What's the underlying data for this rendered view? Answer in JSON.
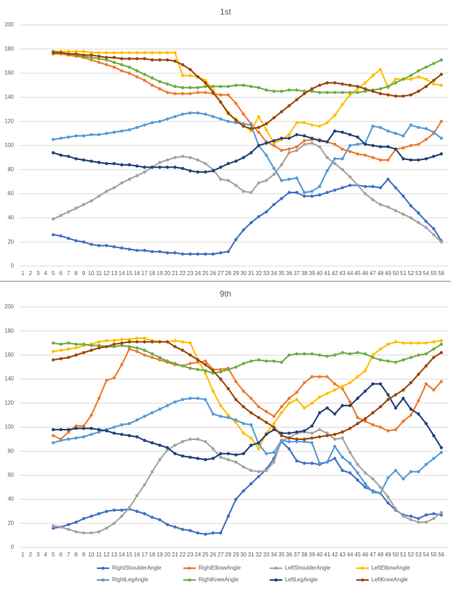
{
  "legend": {
    "series": [
      {
        "name": "RightShoulderAngle",
        "color": "#4472c4"
      },
      {
        "name": "RightElbowAngle",
        "color": "#ed7d31"
      },
      {
        "name": "LeftShoulderAngle",
        "color": "#a5a5a5"
      },
      {
        "name": "LeftElbowAngle",
        "color": "#ffc000"
      },
      {
        "name": "RightLegAngle",
        "color": "#5b9bd5"
      },
      {
        "name": "RightKneeAngle",
        "color": "#70ad47"
      },
      {
        "name": "LeftLegAngle",
        "color": "#264478"
      },
      {
        "name": "LeftKneeAngle",
        "color": "#9e480e"
      }
    ]
  },
  "chart_data": [
    {
      "type": "line",
      "title": "1st",
      "categories": [
        "1",
        "2",
        "3",
        "4",
        "5",
        "6",
        "7",
        "8",
        "9",
        "10",
        "11",
        "12",
        "13",
        "14",
        "15",
        "16",
        "17",
        "18",
        "19",
        "20",
        "21",
        "22",
        "23",
        "24",
        "25",
        "26",
        "27",
        "28",
        "29",
        "30",
        "31",
        "32",
        "33",
        "34",
        "35",
        "36",
        "37",
        "38",
        "39",
        "40",
        "41",
        "42",
        "43",
        "44",
        "45",
        "46",
        "47",
        "48",
        "49",
        "50",
        "51",
        "52",
        "53",
        "54",
        "55",
        "56"
      ],
      "ylim": [
        0,
        200
      ],
      "yticks": [
        0,
        20,
        40,
        60,
        80,
        100,
        120,
        140,
        160,
        180,
        200
      ],
      "grid": true,
      "series": [
        {
          "values": [
            null,
            null,
            null,
            null,
            26,
            25,
            23,
            21,
            20,
            18,
            17,
            17,
            16,
            15,
            14,
            13,
            13,
            12,
            12,
            11,
            11,
            10,
            10,
            10,
            10,
            10,
            11,
            12,
            22,
            30,
            36,
            41,
            45,
            51,
            56,
            61,
            61,
            58,
            58,
            59,
            61,
            63,
            65,
            67,
            67,
            66,
            66,
            65,
            72,
            65,
            58,
            50,
            44,
            37,
            31,
            21
          ]
        },
        {
          "values": [
            null,
            null,
            null,
            null,
            176,
            176,
            175,
            174,
            173,
            171,
            169,
            167,
            165,
            162,
            160,
            157,
            154,
            150,
            147,
            144,
            143,
            143,
            143,
            144,
            144,
            143,
            142,
            142,
            135,
            126,
            118,
            111,
            103,
            100,
            96,
            97,
            99,
            104,
            105,
            105,
            103,
            101,
            97,
            95,
            93,
            92,
            90,
            88,
            88,
            97,
            98,
            100,
            101,
            105,
            110,
            120
          ]
        },
        {
          "values": [
            null,
            null,
            null,
            null,
            39,
            42,
            45,
            48,
            51,
            54,
            58,
            62,
            65,
            69,
            72,
            75,
            78,
            82,
            86,
            88,
            90,
            91,
            90,
            88,
            85,
            80,
            72,
            71,
            67,
            62,
            61,
            69,
            71,
            76,
            84,
            94,
            96,
            101,
            102,
            99,
            90,
            85,
            80,
            74,
            67,
            60,
            55,
            51,
            49,
            46,
            43,
            40,
            36,
            32,
            26,
            20
          ]
        },
        {
          "values": [
            null,
            null,
            null,
            null,
            178,
            178,
            178,
            178,
            178,
            177,
            177,
            177,
            177,
            177,
            177,
            177,
            177,
            177,
            177,
            177,
            177,
            158,
            158,
            157,
            154,
            146,
            136,
            126,
            122,
            117,
            112,
            124,
            113,
            102,
            105,
            109,
            119,
            119,
            117,
            116,
            119,
            125,
            134,
            142,
            147,
            152,
            158,
            163,
            148,
            155,
            155,
            155,
            157,
            155,
            151,
            150
          ]
        },
        {
          "values": [
            null,
            null,
            null,
            null,
            105,
            106,
            107,
            108,
            108,
            109,
            109,
            110,
            111,
            112,
            113,
            115,
            117,
            119,
            120,
            122,
            124,
            126,
            127,
            127,
            126,
            124,
            122,
            120,
            119,
            118,
            117,
            100,
            92,
            81,
            71,
            72,
            73,
            61,
            62,
            66,
            79,
            89,
            89,
            100,
            101,
            102,
            116,
            115,
            112,
            110,
            108,
            117,
            115,
            114,
            111,
            106
          ]
        },
        {
          "values": [
            null,
            null,
            null,
            null,
            178,
            177,
            176,
            175,
            174,
            173,
            172,
            171,
            169,
            167,
            165,
            162,
            159,
            156,
            153,
            151,
            149,
            148,
            148,
            148,
            149,
            149,
            149,
            149,
            150,
            150,
            149,
            148,
            146,
            145,
            145,
            146,
            146,
            145,
            145,
            144,
            144,
            144,
            144,
            144,
            144,
            145,
            146,
            147,
            149,
            152,
            155,
            158,
            162,
            165,
            168,
            171
          ]
        },
        {
          "values": [
            null,
            null,
            null,
            null,
            94,
            92,
            91,
            89,
            88,
            87,
            86,
            85,
            85,
            84,
            84,
            83,
            82,
            82,
            82,
            82,
            82,
            81,
            79,
            78,
            78,
            79,
            82,
            85,
            87,
            90,
            94,
            100,
            102,
            104,
            106,
            106,
            109,
            108,
            106,
            104,
            103,
            112,
            111,
            109,
            107,
            101,
            100,
            99,
            99,
            97,
            89,
            88,
            88,
            89,
            91,
            93
          ]
        },
        {
          "values": [
            null,
            null,
            null,
            null,
            177,
            177,
            176,
            176,
            175,
            175,
            174,
            173,
            173,
            172,
            172,
            172,
            172,
            171,
            171,
            171,
            170,
            167,
            163,
            157,
            152,
            144,
            136,
            127,
            121,
            116,
            114,
            115,
            118,
            123,
            128,
            133,
            138,
            143,
            147,
            150,
            152,
            152,
            151,
            150,
            149,
            147,
            145,
            143,
            142,
            141,
            141,
            142,
            145,
            149,
            154,
            159
          ]
        }
      ]
    },
    {
      "type": "line",
      "title": "9th",
      "categories": [
        "1",
        "2",
        "3",
        "4",
        "5",
        "6",
        "7",
        "8",
        "9",
        "10",
        "11",
        "12",
        "13",
        "14",
        "15",
        "16",
        "17",
        "18",
        "19",
        "20",
        "21",
        "22",
        "23",
        "24",
        "25",
        "26",
        "27",
        "28",
        "29",
        "30",
        "31",
        "32",
        "33",
        "34",
        "35",
        "36",
        "37",
        "38",
        "39",
        "40",
        "41",
        "42",
        "43",
        "44",
        "45",
        "46",
        "47",
        "48",
        "49",
        "50",
        "51",
        "52",
        "53",
        "54",
        "55",
        "56"
      ],
      "ylim": [
        0,
        200
      ],
      "yticks": [
        0,
        20,
        40,
        60,
        80,
        100,
        120,
        140,
        160,
        180,
        200
      ],
      "grid": true,
      "series": [
        {
          "values": [
            null,
            null,
            null,
            null,
            16,
            17,
            19,
            21,
            24,
            26,
            28,
            30,
            31,
            31,
            32,
            30,
            28,
            25,
            23,
            19,
            17,
            15,
            14,
            12,
            11,
            12,
            12,
            26,
            40,
            47,
            53,
            59,
            65,
            74,
            88,
            82,
            72,
            70,
            70,
            69,
            71,
            74,
            64,
            62,
            56,
            50,
            47,
            45,
            37,
            31,
            27,
            26,
            24,
            27,
            28,
            27
          ]
        },
        {
          "values": [
            null,
            null,
            null,
            null,
            93,
            90,
            96,
            101,
            101,
            110,
            124,
            139,
            141,
            152,
            165,
            163,
            160,
            158,
            156,
            154,
            152,
            151,
            153,
            154,
            155,
            148,
            148,
            149,
            138,
            130,
            124,
            117,
            113,
            109,
            117,
            124,
            129,
            137,
            142,
            142,
            142,
            136,
            132,
            121,
            108,
            105,
            102,
            100,
            97,
            98,
            105,
            110,
            122,
            136,
            131,
            138
          ]
        },
        {
          "values": [
            null,
            null,
            null,
            null,
            18,
            17,
            15,
            13,
            12,
            12,
            13,
            16,
            20,
            26,
            33,
            43,
            52,
            63,
            73,
            81,
            85,
            88,
            90,
            90,
            88,
            82,
            75,
            73,
            71,
            67,
            64,
            63,
            64,
            71,
            89,
            91,
            95,
            96,
            95,
            98,
            95,
            90,
            91,
            79,
            69,
            62,
            57,
            50,
            42,
            32,
            26,
            23,
            21,
            21,
            24,
            29
          ]
        },
        {
          "values": [
            null,
            null,
            null,
            null,
            163,
            164,
            165,
            166,
            168,
            169,
            171,
            172,
            172,
            173,
            173,
            174,
            174,
            172,
            171,
            171,
            172,
            171,
            170,
            156,
            145,
            130,
            118,
            110,
            104,
            95,
            91,
            82,
            95,
            103,
            112,
            120,
            123,
            116,
            120,
            125,
            128,
            131,
            134,
            137,
            142,
            147,
            160,
            165,
            169,
            171,
            170,
            170,
            170,
            170,
            171,
            172
          ]
        },
        {
          "values": [
            null,
            null,
            null,
            null,
            87,
            89,
            90,
            91,
            92,
            94,
            96,
            98,
            100,
            102,
            103,
            106,
            109,
            112,
            115,
            118,
            121,
            123,
            124,
            124,
            123,
            111,
            109,
            108,
            106,
            103,
            102,
            86,
            78,
            79,
            89,
            88,
            88,
            88,
            87,
            70,
            71,
            84,
            75,
            70,
            62,
            53,
            46,
            45,
            58,
            64,
            57,
            63,
            63,
            69,
            74,
            79
          ]
        },
        {
          "values": [
            null,
            null,
            null,
            null,
            170,
            169,
            170,
            169,
            169,
            168,
            168,
            167,
            167,
            168,
            167,
            166,
            164,
            161,
            158,
            155,
            153,
            151,
            149,
            148,
            147,
            145,
            146,
            148,
            150,
            153,
            155,
            156,
            155,
            155,
            154,
            160,
            161,
            161,
            161,
            160,
            159,
            160,
            162,
            161,
            162,
            161,
            158,
            156,
            155,
            154,
            156,
            158,
            160,
            161,
            165,
            169
          ]
        },
        {
          "values": [
            null,
            null,
            null,
            null,
            98,
            98,
            98,
            99,
            99,
            99,
            98,
            97,
            95,
            94,
            93,
            92,
            89,
            87,
            85,
            83,
            78,
            76,
            75,
            74,
            73,
            74,
            78,
            78,
            77,
            78,
            85,
            87,
            94,
            98,
            95,
            95,
            96,
            97,
            101,
            112,
            116,
            111,
            118,
            118,
            124,
            130,
            136,
            136,
            127,
            116,
            124,
            115,
            111,
            103,
            93,
            83
          ]
        },
        {
          "values": [
            null,
            null,
            null,
            null,
            156,
            157,
            158,
            160,
            162,
            164,
            166,
            167,
            169,
            170,
            171,
            171,
            171,
            171,
            171,
            171,
            167,
            164,
            160,
            156,
            152,
            147,
            140,
            132,
            123,
            117,
            112,
            108,
            104,
            100,
            93,
            91,
            90,
            90,
            91,
            92,
            93,
            94,
            96,
            99,
            103,
            107,
            112,
            117,
            123,
            127,
            131,
            137,
            144,
            151,
            158,
            162
          ]
        }
      ]
    }
  ]
}
